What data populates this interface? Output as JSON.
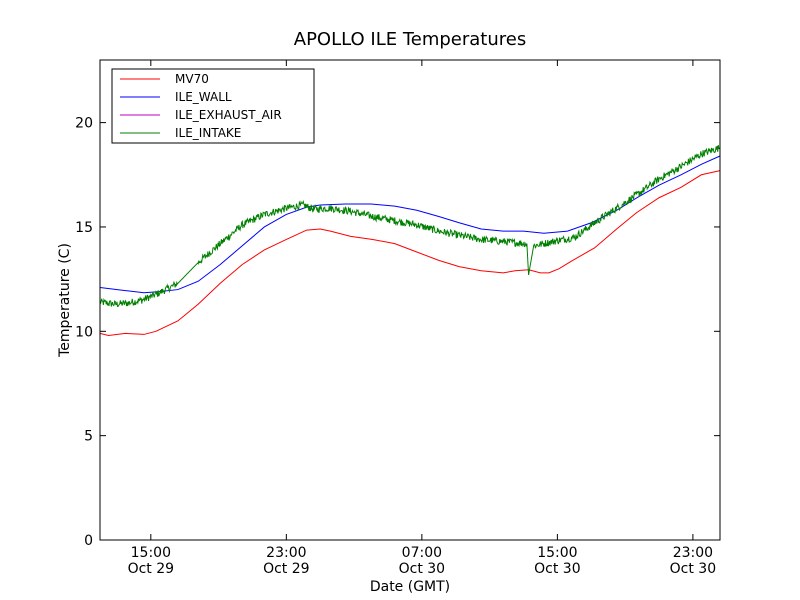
{
  "chart_data": {
    "type": "line",
    "title": "APOLLO ILE Temperatures",
    "xlabel": "Date (GMT)",
    "ylabel": "Temperature (C)",
    "xlim": [
      11.0,
      47.6
    ],
    "ylim": [
      0,
      23
    ],
    "x_unit": "hours since Oct 29 00:00 GMT",
    "x_ticks": [
      {
        "x": 14,
        "time": "15:00",
        "date": "Oct 29"
      },
      {
        "x": 22,
        "time": "23:00",
        "date": "Oct 29"
      },
      {
        "x": 30,
        "time": "07:00",
        "date": "Oct 30"
      },
      {
        "x": 38,
        "time": "15:00",
        "date": "Oct 30"
      },
      {
        "x": 46,
        "time": "23:00",
        "date": "Oct 30"
      }
    ],
    "y_ticks": [
      0,
      5,
      10,
      15,
      20
    ],
    "y_tick_labels": [
      "0",
      "5",
      "10",
      "15",
      "20"
    ],
    "legend_location": "upper-left",
    "series": [
      {
        "name": "MV70",
        "color": "#ff0000",
        "x": [
          11.0,
          11.5,
          12.5,
          13.6,
          14.3,
          15.6,
          16.8,
          18.1,
          19.4,
          20.7,
          22.0,
          23.2,
          24.0,
          24.6,
          25.8,
          27.1,
          28.4,
          29.7,
          31.0,
          32.2,
          33.5,
          34.8,
          35.5,
          36.3,
          37.0,
          37.5,
          38.1,
          38.8,
          40.2,
          41.5,
          42.7,
          44.0,
          45.3,
          46.5,
          47.6
        ],
        "values": [
          9.9,
          9.8,
          9.9,
          9.85,
          10.0,
          10.5,
          11.3,
          12.3,
          13.2,
          13.9,
          14.4,
          14.85,
          14.9,
          14.8,
          14.55,
          14.4,
          14.2,
          13.8,
          13.4,
          13.1,
          12.9,
          12.8,
          12.9,
          12.95,
          12.8,
          12.8,
          13.0,
          13.35,
          14.0,
          14.9,
          15.7,
          16.4,
          16.9,
          17.5,
          17.7
        ]
      },
      {
        "name": "ILE_WALL",
        "color": "#0000ff",
        "x": [
          11.0,
          12.5,
          13.6,
          14.5,
          15.6,
          16.8,
          18.1,
          19.4,
          20.7,
          22.0,
          23.2,
          24.0,
          25.5,
          27.0,
          28.4,
          29.7,
          31.0,
          32.2,
          33.5,
          34.8,
          36.0,
          37.2,
          38.6,
          40.0,
          41.5,
          42.7,
          44.0,
          45.3,
          46.5,
          47.6
        ],
        "values": [
          12.1,
          11.95,
          11.85,
          11.9,
          12.0,
          12.4,
          13.2,
          14.1,
          15.0,
          15.6,
          15.95,
          16.05,
          16.1,
          16.1,
          16.0,
          15.8,
          15.5,
          15.2,
          14.9,
          14.8,
          14.8,
          14.7,
          14.8,
          15.2,
          15.8,
          16.4,
          17.0,
          17.5,
          18.0,
          18.4
        ]
      },
      {
        "name": "ILE_EXHAUST_AIR",
        "color": "#bf00bf",
        "x": [],
        "values": []
      },
      {
        "name": "ILE_INTAKE",
        "color": "#008000",
        "x": [
          11.0,
          11.9,
          12.6,
          13.5,
          14.4,
          15.6,
          16.8,
          18.1,
          19.4,
          20.7,
          22.0,
          23.0,
          23.6,
          24.6,
          25.8,
          27.1,
          28.4,
          29.7,
          31.0,
          32.2,
          33.5,
          34.8,
          35.5,
          36.2,
          36.3,
          36.6,
          37.2,
          38.0,
          39.0,
          40.2,
          41.5,
          42.8,
          44.0,
          45.3,
          46.5,
          47.6
        ],
        "values": [
          11.4,
          11.3,
          11.35,
          11.5,
          11.8,
          12.3,
          13.3,
          14.2,
          15.1,
          15.6,
          15.9,
          16.05,
          15.85,
          15.9,
          15.75,
          15.5,
          15.3,
          15.1,
          14.8,
          14.6,
          14.4,
          14.3,
          14.25,
          14.2,
          12.7,
          14.1,
          14.2,
          14.35,
          14.5,
          15.2,
          15.9,
          16.6,
          17.3,
          17.9,
          18.5,
          18.8
        ]
      }
    ]
  }
}
